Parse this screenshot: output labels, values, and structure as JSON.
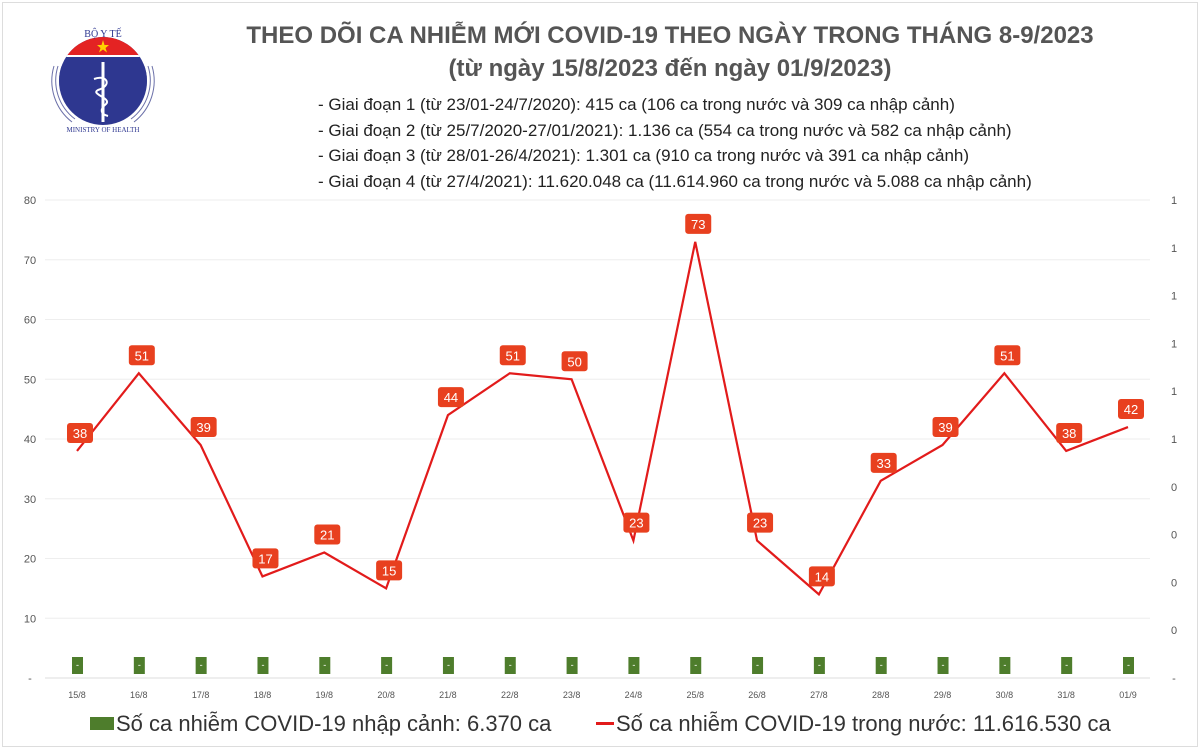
{
  "header": {
    "title": "THEO DÕI CA NHIỄM MỚI COVID-19 THEO NGÀY TRONG THÁNG 8-9/2023",
    "subtitle": "(từ ngày 15/8/2023 đến ngày 01/9/2023)",
    "logo_text_top": "BỘ Y TẾ",
    "logo_text_bottom": "MINISTRY OF HEALTH",
    "stages": [
      "- Giai đoạn 1 (từ 23/01-24/7/2020): 415 ca (106 ca trong nước và 309 ca nhập cảnh)",
      "- Giai đoạn 2 (từ 25/7/2020-27/01/2021): 1.136 ca (554 ca trong nước và 582 ca nhập cảnh)",
      "- Giai đoạn 3 (từ 28/01-26/4/2021): 1.301 ca (910 ca trong nước và 391 ca nhập cảnh)",
      "- Giai đoạn 4 (từ 27/4/2021): 11.620.048 ca (11.614.960 ca trong nước và 5.088 ca nhập cảnh)"
    ]
  },
  "chart_data": {
    "type": "line",
    "categories": [
      "15/8",
      "16/8",
      "17/8",
      "18/8",
      "19/8",
      "20/8",
      "21/8",
      "22/8",
      "23/8",
      "24/8",
      "25/8",
      "26/8",
      "27/8",
      "28/8",
      "29/8",
      "30/8",
      "31/8",
      "01/9"
    ],
    "series": [
      {
        "name": "Số ca nhiễm COVID-19 trong nước: 11.616.530 ca",
        "type": "line",
        "color": "#e21b1b",
        "values": [
          38,
          51,
          39,
          17,
          21,
          15,
          44,
          51,
          50,
          23,
          73,
          23,
          14,
          33,
          39,
          51,
          38,
          42
        ]
      },
      {
        "name": "Số ca nhiễm COVID-19 nhập cảnh: 6.370 ca",
        "type": "bar",
        "color": "#4e7d2c",
        "values": [
          0,
          0,
          0,
          0,
          0,
          0,
          0,
          0,
          0,
          0,
          0,
          0,
          0,
          0,
          0,
          0,
          0,
          0
        ],
        "bar_label": "-"
      }
    ],
    "y_left_ticks": [
      "-",
      "10",
      "20",
      "30",
      "40",
      "50",
      "60",
      "70",
      "80"
    ],
    "y_right_ticks": [
      "-",
      "0",
      "0",
      "0",
      "0",
      "1",
      "1",
      "1",
      "1",
      "1",
      "1"
    ],
    "ylim": [
      0,
      80
    ],
    "legend_position": "bottom"
  }
}
